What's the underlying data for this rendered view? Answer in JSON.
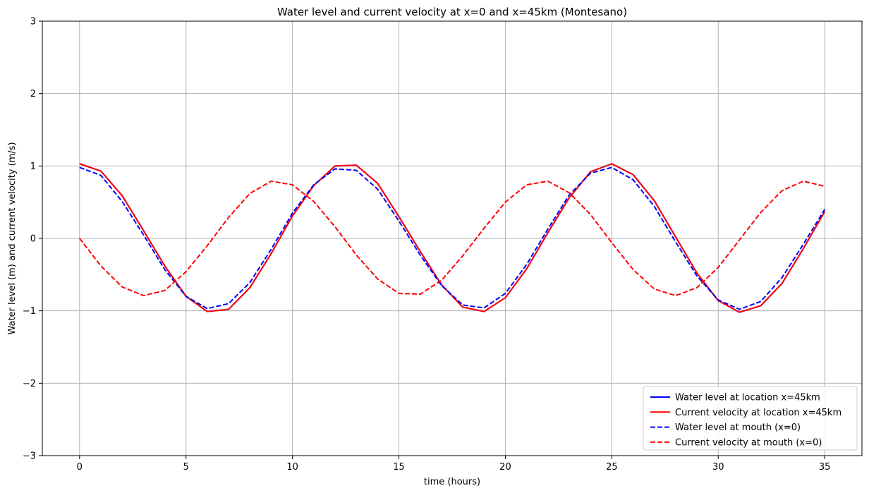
{
  "chart_data": {
    "type": "line",
    "title": "Water level and current velocity at x=0 and x=45km (Montesano)",
    "xlabel": "time (hours)",
    "ylabel": "Water level (m) and current velocity (m/s)",
    "xlim": [
      -1.75,
      36.75
    ],
    "ylim": [
      -3,
      3
    ],
    "xticks": [
      0,
      5,
      10,
      15,
      20,
      25,
      30,
      35
    ],
    "yticks": [
      -3,
      -2,
      -1,
      0,
      1,
      2,
      3
    ],
    "xtick_labels": [
      "0",
      "5",
      "10",
      "15",
      "20",
      "25",
      "30",
      "35"
    ],
    "ytick_labels": [
      "−3",
      "−2",
      "−1",
      "0",
      "1",
      "2",
      "3"
    ],
    "grid": true,
    "legend_position": "lower-right",
    "x": [
      0,
      1,
      2,
      3,
      4,
      5,
      6,
      7,
      8,
      9,
      10,
      11,
      12,
      13,
      14,
      15,
      16,
      17,
      18,
      19,
      20,
      21,
      22,
      23,
      24,
      25,
      26,
      27,
      28,
      29,
      30,
      31,
      32,
      33,
      34,
      35
    ],
    "series": [
      {
        "name": "Water level at location x=45km",
        "color": "#0000ff",
        "dash": "solid",
        "values": [
          1.03,
          0.93,
          0.59,
          0.11,
          -0.38,
          -0.8,
          -1.01,
          -0.98,
          -0.68,
          -0.21,
          0.31,
          0.73,
          1.0,
          1.01,
          0.76,
          0.3,
          -0.18,
          -0.64,
          -0.95,
          -1.01,
          -0.82,
          -0.42,
          0.08,
          0.56,
          0.92,
          1.03,
          0.88,
          0.52,
          0.02,
          -0.48,
          -0.86,
          -1.02,
          -0.93,
          -0.62,
          -0.14,
          0.37
        ]
      },
      {
        "name": "Current velocity at location x=45km",
        "color": "#ff0000",
        "dash": "solid",
        "values": [
          1.03,
          0.93,
          0.59,
          0.11,
          -0.38,
          -0.8,
          -1.01,
          -0.98,
          -0.68,
          -0.21,
          0.31,
          0.73,
          1.0,
          1.01,
          0.76,
          0.3,
          -0.18,
          -0.64,
          -0.95,
          -1.01,
          -0.82,
          -0.42,
          0.08,
          0.56,
          0.92,
          1.03,
          0.88,
          0.52,
          0.02,
          -0.48,
          -0.86,
          -1.02,
          -0.93,
          -0.62,
          -0.14,
          0.37
        ]
      },
      {
        "name": "Water level at mouth (x=0)",
        "color": "#0000ff",
        "dash": "dashed",
        "values": [
          0.98,
          0.87,
          0.51,
          0.05,
          -0.43,
          -0.8,
          -0.97,
          -0.9,
          -0.61,
          -0.15,
          0.35,
          0.74,
          0.96,
          0.94,
          0.68,
          0.24,
          -0.23,
          -0.65,
          -0.92,
          -0.96,
          -0.76,
          -0.36,
          0.13,
          0.6,
          0.9,
          0.98,
          0.81,
          0.44,
          -0.05,
          -0.52,
          -0.85,
          -0.98,
          -0.87,
          -0.54,
          -0.08,
          0.4
        ]
      },
      {
        "name": "Current velocity at mouth (x=0)",
        "color": "#ff0000",
        "dash": "dashed",
        "values": [
          0.0,
          -0.38,
          -0.67,
          -0.79,
          -0.72,
          -0.46,
          -0.1,
          0.29,
          0.62,
          0.79,
          0.74,
          0.51,
          0.16,
          -0.23,
          -0.56,
          -0.76,
          -0.77,
          -0.58,
          -0.24,
          0.14,
          0.5,
          0.74,
          0.79,
          0.63,
          0.33,
          -0.06,
          -0.43,
          -0.7,
          -0.79,
          -0.68,
          -0.4,
          -0.02,
          0.36,
          0.66,
          0.79,
          0.72
        ]
      }
    ]
  }
}
